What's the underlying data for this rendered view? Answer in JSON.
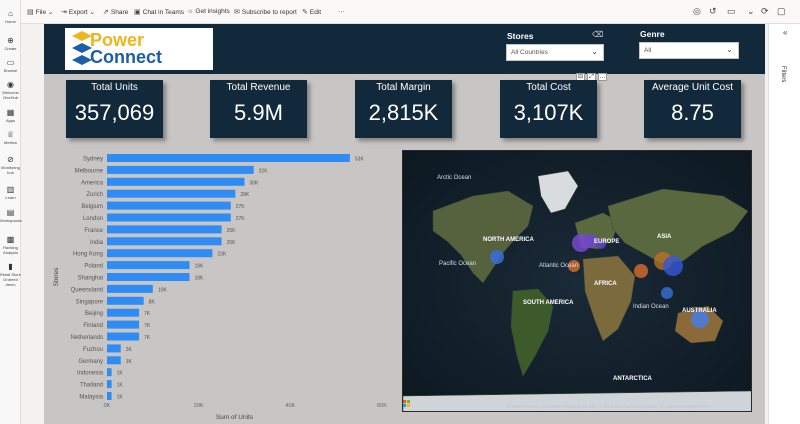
{
  "leftnav": {
    "items": [
      {
        "label": "Home",
        "icon": "home-icon"
      },
      {
        "label": "Create",
        "icon": "plus-icon"
      },
      {
        "label": "Browse",
        "icon": "folder-icon"
      },
      {
        "label": "Welcome OneHub",
        "icon": "onelake-icon"
      },
      {
        "label": "Apps",
        "icon": "apps-icon"
      },
      {
        "label": "Metrics",
        "icon": "trophy-icon"
      },
      {
        "label": "Monitoring hub",
        "icon": "monitor-icon"
      },
      {
        "label": "Learn",
        "icon": "book-icon"
      },
      {
        "label": "Workspaces",
        "icon": "workspaces-icon"
      },
      {
        "label": "Ranking Analysis",
        "icon": "ranking-icon"
      },
      {
        "label": "Retail Store Ordered demo",
        "icon": "report-icon"
      }
    ]
  },
  "toolbar": {
    "file": "File",
    "export": "Export",
    "share": "Share",
    "chat_teams": "Chat in Teams",
    "insights": "Get insights",
    "subscribe": "Subscribe to report",
    "edit": "Edit"
  },
  "rightpanel": {
    "filters": "Filters"
  },
  "report": {
    "logo_line1": "Power",
    "logo_line2": "Connect",
    "stores_label": "Stores",
    "stores_value": "All Countries",
    "genre_label": "Genre",
    "genre_value": "All",
    "colors": {
      "banner": "#11293b",
      "bar": "#2f8cf4",
      "logo_yellow": "#f0b41c",
      "logo_blue": "#1a5fa8"
    }
  },
  "kpis": [
    {
      "title": "Total Units",
      "value": "357,069"
    },
    {
      "title": "Total Revenue",
      "value": "5.9M"
    },
    {
      "title": "Total Margin",
      "value": "2,815K"
    },
    {
      "title": "Total Cost",
      "value": "3,107K"
    },
    {
      "title": "Average Unit Cost",
      "value": "8.75"
    }
  ],
  "chart_data": {
    "type": "bar",
    "orientation": "horizontal",
    "categories": [
      "Sydney",
      "Melbourne",
      "America",
      "Zurich",
      "Belgium",
      "London",
      "France",
      "India",
      "Hong Kong",
      "Poland",
      "Shanghai",
      "Queensland",
      "Singapore",
      "Beijing",
      "Finland",
      "Netherlands",
      "Fuzhou",
      "Germany",
      "Indonesia",
      "Thailand",
      "Malaysia"
    ],
    "values": [
      53,
      32,
      30,
      28,
      27,
      27,
      25,
      25,
      23,
      18,
      18,
      10,
      8,
      7,
      7,
      7,
      3,
      3,
      1,
      1,
      1
    ],
    "data_labels": [
      "53K",
      "32K",
      "30K",
      "28K",
      "27K",
      "27K",
      "25K",
      "25K",
      "23K",
      "18K",
      "18K",
      "10K",
      "8K",
      "7K",
      "7K",
      "7K",
      "3K",
      "3K",
      "1K",
      "1K",
      "1K"
    ],
    "xlabel": "Sum of Units",
    "ylabel": "Stores",
    "x_ticks": [
      "0K",
      "20K",
      "40K",
      "60K"
    ],
    "xlim": [
      0,
      60
    ],
    "color": "#2f8cf4"
  },
  "map": {
    "labels": {
      "arctic": "Arctic Ocean",
      "north_america": "NORTH AMERICA",
      "europe": "EUROPE",
      "asia": "ASIA",
      "pacific": "Pacific Ocean",
      "atlantic": "Atlantic Ocean",
      "africa": "AFRICA",
      "south_america": "SOUTH AMERICA",
      "indian": "Indian Ocean",
      "australia": "AUSTRALIA",
      "antarctica": "ANTARCTICA"
    },
    "copyright": "© 2023 TomTom, Earthstar Geographics SIO, © 2023 Microsoft Corporation, © OpenStreetMap  Terms",
    "bubble_colors": [
      "#3a6fd8",
      "#7a47d0",
      "#6b48c9",
      "#d06a2a",
      "#b97020",
      "#3657d6",
      "#4a7be6"
    ]
  }
}
